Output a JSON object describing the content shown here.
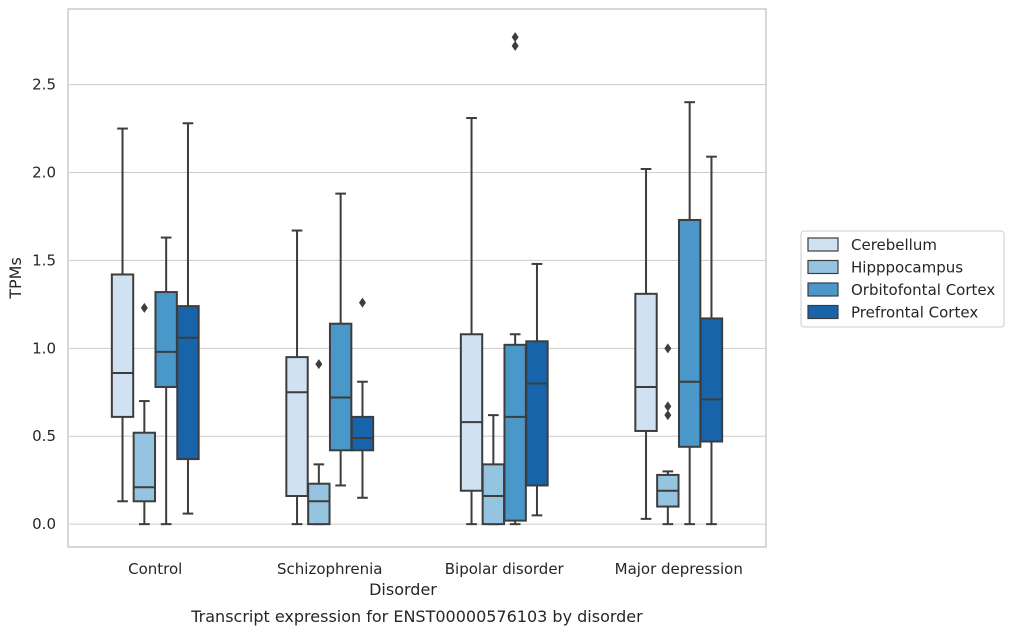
{
  "chart_data": {
    "type": "box",
    "caption": "Transcript expression for ENST00000576103 by disorder",
    "xlabel": "Disorder",
    "ylabel": "TPMs",
    "ylim": [
      -0.13,
      2.93
    ],
    "yticks": [
      0.0,
      0.5,
      1.0,
      1.5,
      2.0,
      2.5
    ],
    "ytick_labels": [
      "0.0",
      "0.5",
      "1.0",
      "1.5",
      "2.0",
      "2.5"
    ],
    "categories": [
      "Control",
      "Schizophrenia",
      "Bipolar disorder",
      "Major depression"
    ],
    "grid": true,
    "legend_position": "right",
    "series": [
      {
        "name": "Cerebellum",
        "color": "#d0e1f2",
        "boxes": [
          {
            "whislo": 0.13,
            "q1": 0.61,
            "med": 0.86,
            "q3": 1.42,
            "whishi": 2.25,
            "fliers": []
          },
          {
            "whislo": 0.0,
            "q1": 0.16,
            "med": 0.75,
            "q3": 0.95,
            "whishi": 1.67,
            "fliers": []
          },
          {
            "whislo": 0.0,
            "q1": 0.19,
            "med": 0.58,
            "q3": 1.08,
            "whishi": 2.31,
            "fliers": []
          },
          {
            "whislo": 0.03,
            "q1": 0.53,
            "med": 0.78,
            "q3": 1.31,
            "whishi": 2.02,
            "fliers": []
          }
        ]
      },
      {
        "name": "Hipppocampus",
        "color": "#94c4df",
        "boxes": [
          {
            "whislo": 0.0,
            "q1": 0.13,
            "med": 0.21,
            "q3": 0.52,
            "whishi": 0.7,
            "fliers": [
              1.23
            ]
          },
          {
            "whislo": 0.0,
            "q1": 0.0,
            "med": 0.13,
            "q3": 0.23,
            "whishi": 0.34,
            "fliers": [
              0.91
            ]
          },
          {
            "whislo": 0.0,
            "q1": 0.0,
            "med": 0.16,
            "q3": 0.34,
            "whishi": 0.62,
            "fliers": []
          },
          {
            "whislo": 0.0,
            "q1": 0.1,
            "med": 0.19,
            "q3": 0.28,
            "whishi": 0.3,
            "fliers": [
              1.0,
              0.67,
              0.62
            ]
          }
        ]
      },
      {
        "name": "Orbitofontal Cortex",
        "color": "#4a98c9",
        "boxes": [
          {
            "whislo": 0.0,
            "q1": 0.78,
            "med": 0.98,
            "q3": 1.32,
            "whishi": 1.63,
            "fliers": []
          },
          {
            "whislo": 0.22,
            "q1": 0.42,
            "med": 0.72,
            "q3": 1.14,
            "whishi": 1.88,
            "fliers": []
          },
          {
            "whislo": 0.0,
            "q1": 0.02,
            "med": 0.61,
            "q3": 1.02,
            "whishi": 1.08,
            "fliers": [
              2.77,
              2.72
            ]
          },
          {
            "whislo": 0.0,
            "q1": 0.44,
            "med": 0.81,
            "q3": 1.73,
            "whishi": 2.4,
            "fliers": []
          }
        ]
      },
      {
        "name": "Prefrontal Cortex",
        "color": "#1764ab",
        "boxes": [
          {
            "whislo": 0.06,
            "q1": 0.37,
            "med": 1.06,
            "q3": 1.24,
            "whishi": 2.28,
            "fliers": []
          },
          {
            "whislo": 0.15,
            "q1": 0.42,
            "med": 0.49,
            "q3": 0.61,
            "whishi": 0.81,
            "fliers": [
              1.26
            ]
          },
          {
            "whislo": 0.05,
            "q1": 0.22,
            "med": 0.8,
            "q3": 1.04,
            "whishi": 1.48,
            "fliers": []
          },
          {
            "whislo": 0.0,
            "q1": 0.47,
            "med": 0.71,
            "q3": 1.17,
            "whishi": 2.09,
            "fliers": []
          }
        ]
      }
    ]
  }
}
